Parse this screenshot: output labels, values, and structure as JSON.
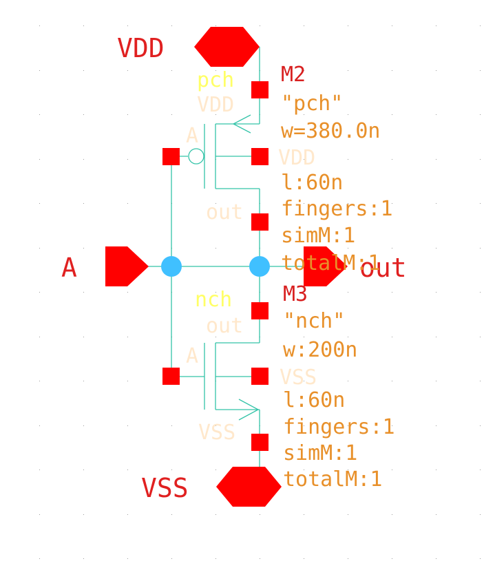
{
  "colors": {
    "background": "#ffffff",
    "grid_dot": "#9a9a9a",
    "wire": "#33c3a8",
    "pin": "#ff0000",
    "pin_label": "#e02020",
    "instance_name": "#d82020",
    "cell_name": "#ffff66",
    "terminal": "#ffe8cc",
    "param": "#e8902a",
    "junction": "#40c0ff"
  },
  "pins": {
    "vdd": "VDD",
    "vss": "VSS",
    "input": "A",
    "output": "out"
  },
  "pmos": {
    "name": "M2",
    "cell_quoted": "\"pch\"",
    "width": "w=380.0n",
    "length": "l:60n",
    "fingers": "fingers:1",
    "simm": "simM:1",
    "totalm": "totalM:1",
    "cell_label": "pch",
    "source_net": "VDD",
    "gate_net": "A",
    "bulk_net": "VDD",
    "drain_net": "out"
  },
  "nmos": {
    "name": "M3",
    "cell_quoted": "\"nch\"",
    "width": "w:200n",
    "length": "l:60n",
    "fingers": "fingers:1",
    "simm": "simM:1",
    "totalm": "totalM:1",
    "cell_label": "nch",
    "drain_net": "out",
    "gate_net": "A",
    "bulk_net": "VSS",
    "source_net": "VSS"
  }
}
